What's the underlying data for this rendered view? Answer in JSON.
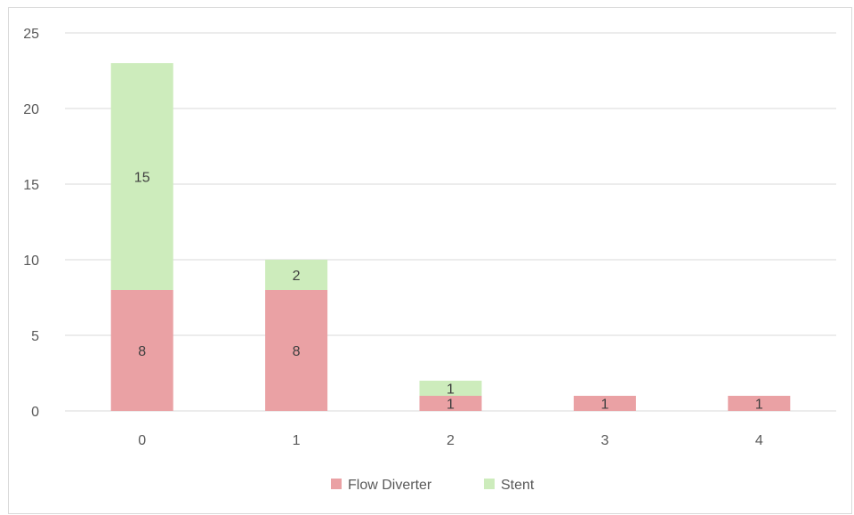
{
  "chart_data": {
    "type": "bar",
    "stacked": true,
    "categories": [
      "0",
      "1",
      "2",
      "3",
      "4"
    ],
    "series": [
      {
        "name": "Flow Diverter",
        "values": [
          8,
          8,
          1,
          1,
          1
        ],
        "labels": [
          "8",
          "8",
          "1",
          "1",
          "1"
        ],
        "color": "#eaa1a4"
      },
      {
        "name": "Stent",
        "values": [
          15,
          2,
          1,
          0,
          0
        ],
        "labels": [
          "15",
          "2",
          "1",
          "",
          ""
        ],
        "color": "#cdecbc"
      }
    ],
    "title": "",
    "xlabel": "",
    "ylabel": "",
    "ylim": [
      0,
      25
    ],
    "yticks": [
      "0",
      "5",
      "10",
      "15",
      "20",
      "25"
    ],
    "grid": true,
    "legend_position": "bottom"
  },
  "colors": {
    "gridline": "#d9d9d9",
    "axis_text": "#595959",
    "label_text": "#404040"
  }
}
